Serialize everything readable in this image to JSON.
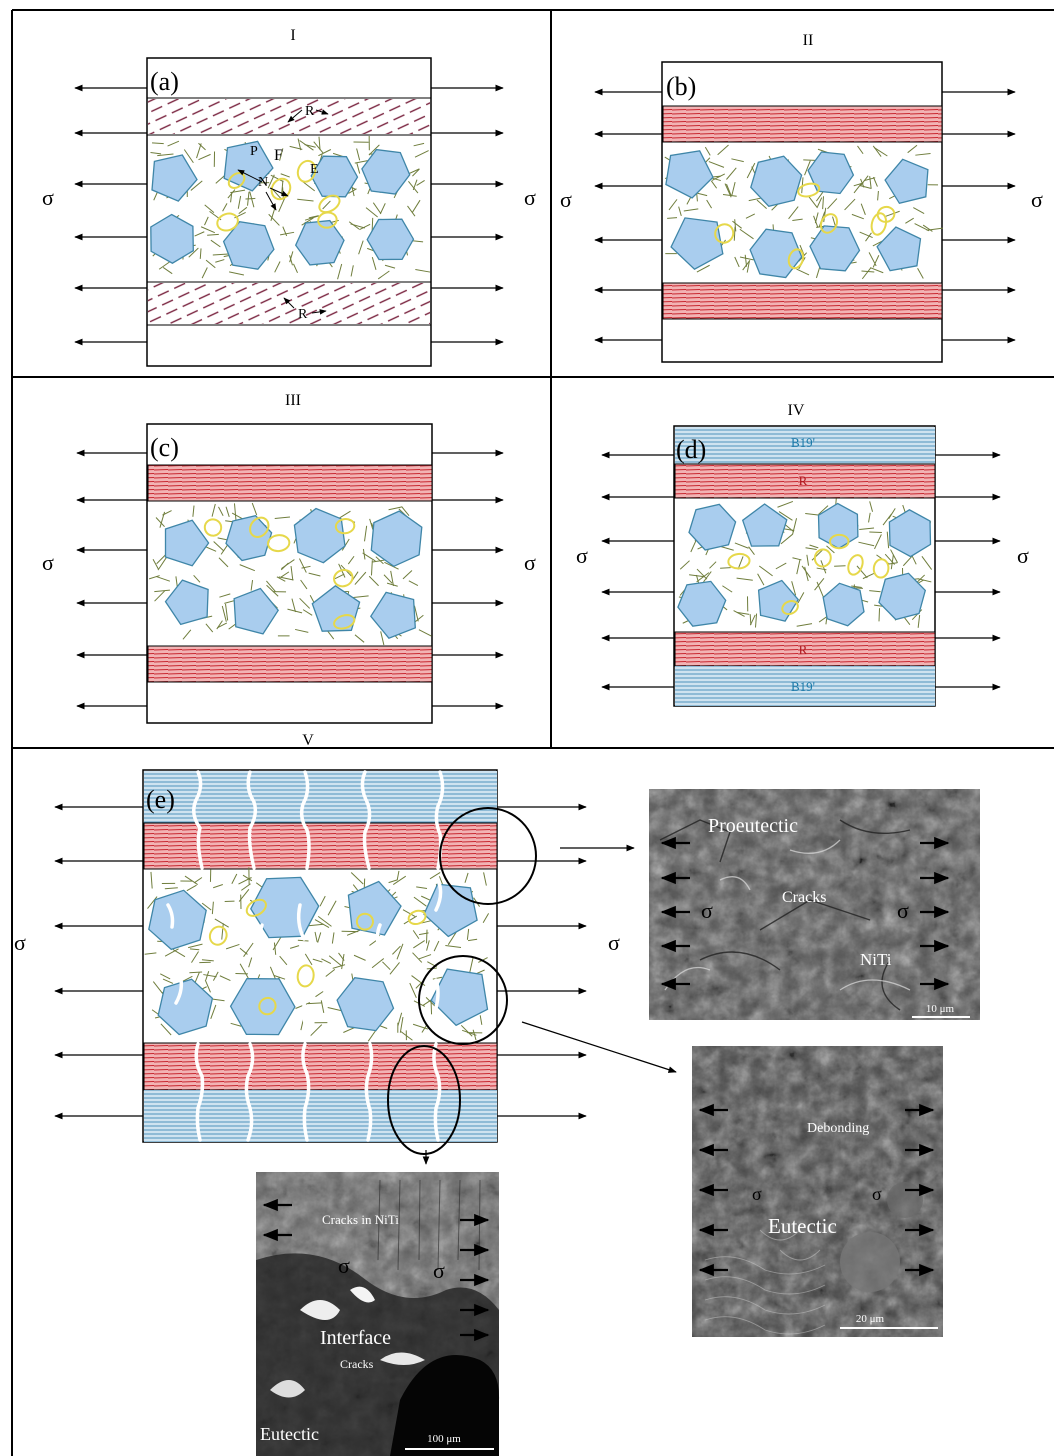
{
  "panels": {
    "I": {
      "roman": "I",
      "label": "(a)"
    },
    "II": {
      "roman": "II",
      "label": "(b)"
    },
    "III": {
      "roman": "III",
      "label": "(c)"
    },
    "IV": {
      "roman": "IV",
      "label": "(d)"
    },
    "V": {
      "roman": "V",
      "label": "(e)"
    }
  },
  "stress_symbol": "σ",
  "annotations_a": {
    "R_top": "R",
    "R_bottom": "R",
    "P": "P",
    "F": "F",
    "E": "E",
    "N": "N"
  },
  "phase_labels_d": {
    "top_b19": "B19'",
    "top_r": "R",
    "bot_r": "R",
    "bot_b19": "B19'"
  },
  "sem_images": {
    "proeutectic": {
      "title": "Proeutectic",
      "label_cracks": "Cracks",
      "label_niti": "NiTi",
      "scale": "10 μm"
    },
    "eutectic": {
      "label_debonding": "Debonding",
      "title": "Eutectic",
      "scale": "20 μm"
    },
    "interface": {
      "label_cracks_niti": "Cracks in NiTi",
      "title": "Interface",
      "label_cracks": "Cracks",
      "label_eutectic": "Eutectic",
      "scale": "100 μm"
    }
  },
  "colors": {
    "r_phase": "#d9434b",
    "b19_phase": "#7fb0cf",
    "primary_grain": "#a9cdee",
    "grain_edge": "#3f86a8",
    "nucleus": "#e6d84a",
    "lamellae": "#6f7d3c",
    "r_text": "#b0181e",
    "b19_text": "#1b7aa8"
  }
}
